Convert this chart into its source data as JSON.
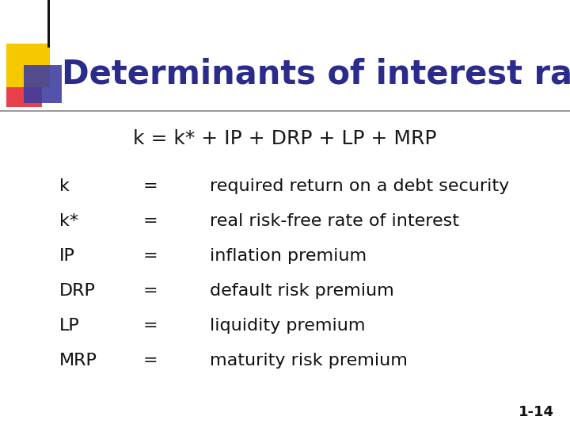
{
  "title": "Determinants of interest rates",
  "title_color": "#2B2B8C",
  "formula": "k = k* + IP + DRP + LP + MRP",
  "formula_color": "#1a1a1a",
  "background_color": "#FFFFFF",
  "slide_number": "1-14",
  "rows": [
    {
      "symbol": "k",
      "eq": "=",
      "definition": "required return on a debt security"
    },
    {
      "symbol": "k*",
      "eq": "=",
      "definition": "real risk-free rate of interest"
    },
    {
      "symbol": "IP",
      "eq": "=",
      "definition": "inflation premium"
    },
    {
      "symbol": "DRP",
      "eq": "=",
      "definition": "default risk premium"
    },
    {
      "symbol": "LP",
      "eq": "=",
      "definition": "liquidity premium"
    },
    {
      "symbol": "MRP",
      "eq": "=",
      "definition": "maturity risk premium"
    }
  ],
  "title_font_size": 30,
  "formula_font_size": 18,
  "body_font_size": 16
}
